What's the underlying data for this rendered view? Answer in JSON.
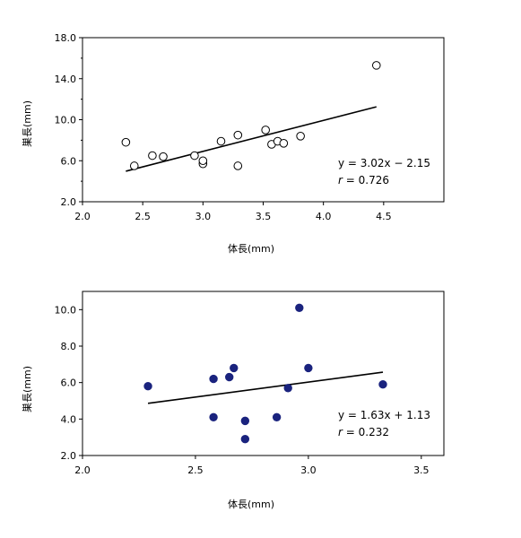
{
  "chart_data": [
    {
      "type": "scatter",
      "title": "",
      "xlabel": "体長(mm)",
      "ylabel": "巣長(mm)",
      "xlim": [
        2.0,
        5.0
      ],
      "ylim": [
        2.0,
        18.0
      ],
      "x_ticks": [
        "2.0",
        "2.5",
        "3.0",
        "3.5",
        "4.0",
        "4.5"
      ],
      "y_ticks": [
        "2.0",
        "6.0",
        "10.0",
        "14.0",
        "18.0"
      ],
      "x_tick_values": [
        2.0,
        2.5,
        3.0,
        3.5,
        4.0,
        4.5
      ],
      "y_tick_values": [
        2.0,
        6.0,
        10.0,
        14.0,
        18.0
      ],
      "y_minor_ticks": [
        4.0,
        8.0,
        12.0,
        16.0
      ],
      "grid": false,
      "marker": "open-circle",
      "marker_color": "#000000",
      "points": [
        {
          "x": 2.36,
          "y": 7.8
        },
        {
          "x": 2.43,
          "y": 5.5
        },
        {
          "x": 2.58,
          "y": 6.5
        },
        {
          "x": 2.67,
          "y": 6.4
        },
        {
          "x": 2.93,
          "y": 6.5
        },
        {
          "x": 3.0,
          "y": 5.7
        },
        {
          "x": 3.0,
          "y": 6.0
        },
        {
          "x": 3.15,
          "y": 7.9
        },
        {
          "x": 3.29,
          "y": 8.5
        },
        {
          "x": 3.29,
          "y": 5.5
        },
        {
          "x": 3.52,
          "y": 9.0
        },
        {
          "x": 3.57,
          "y": 7.6
        },
        {
          "x": 3.62,
          "y": 7.9
        },
        {
          "x": 3.67,
          "y": 7.7
        },
        {
          "x": 3.81,
          "y": 8.4
        },
        {
          "x": 4.44,
          "y": 15.3
        }
      ],
      "trendline": {
        "x": [
          2.36,
          4.44
        ],
        "y": [
          4.98,
          11.26
        ]
      },
      "equation_line1": "y = 3.02x − 2.15",
      "equation_r_label": "r",
      "equation_r_value": " = 0.726"
    },
    {
      "type": "scatter",
      "title": "",
      "xlabel": "体長(mm)",
      "ylabel": "巣長(mm)",
      "xlim": [
        2.0,
        3.6
      ],
      "ylim": [
        2.0,
        11.0
      ],
      "x_ticks": [
        "2.0",
        "2.5",
        "3.0",
        "3.5"
      ],
      "y_ticks": [
        "2.0",
        "4.0",
        "6.0",
        "8.0",
        "10.0"
      ],
      "x_tick_values": [
        2.0,
        2.5,
        3.0,
        3.5
      ],
      "y_tick_values": [
        2.0,
        4.0,
        6.0,
        8.0,
        10.0
      ],
      "y_minor_ticks": [],
      "grid": false,
      "marker": "filled-circle",
      "marker_color": "#1a237e",
      "points": [
        {
          "x": 2.29,
          "y": 5.8
        },
        {
          "x": 2.58,
          "y": 6.2
        },
        {
          "x": 2.58,
          "y": 4.1
        },
        {
          "x": 2.65,
          "y": 6.3
        },
        {
          "x": 2.67,
          "y": 6.8
        },
        {
          "x": 2.72,
          "y": 3.9
        },
        {
          "x": 2.72,
          "y": 2.9
        },
        {
          "x": 2.86,
          "y": 4.1
        },
        {
          "x": 2.91,
          "y": 5.7
        },
        {
          "x": 2.96,
          "y": 10.1
        },
        {
          "x": 3.0,
          "y": 6.8
        },
        {
          "x": 3.33,
          "y": 5.9
        }
      ],
      "trendline": {
        "x": [
          2.29,
          3.33
        ],
        "y": [
          4.86,
          6.57
        ]
      },
      "equation_line1": "y = 1.63x + 1.13",
      "equation_r_label": "r",
      "equation_r_value": " = 0.232"
    }
  ]
}
